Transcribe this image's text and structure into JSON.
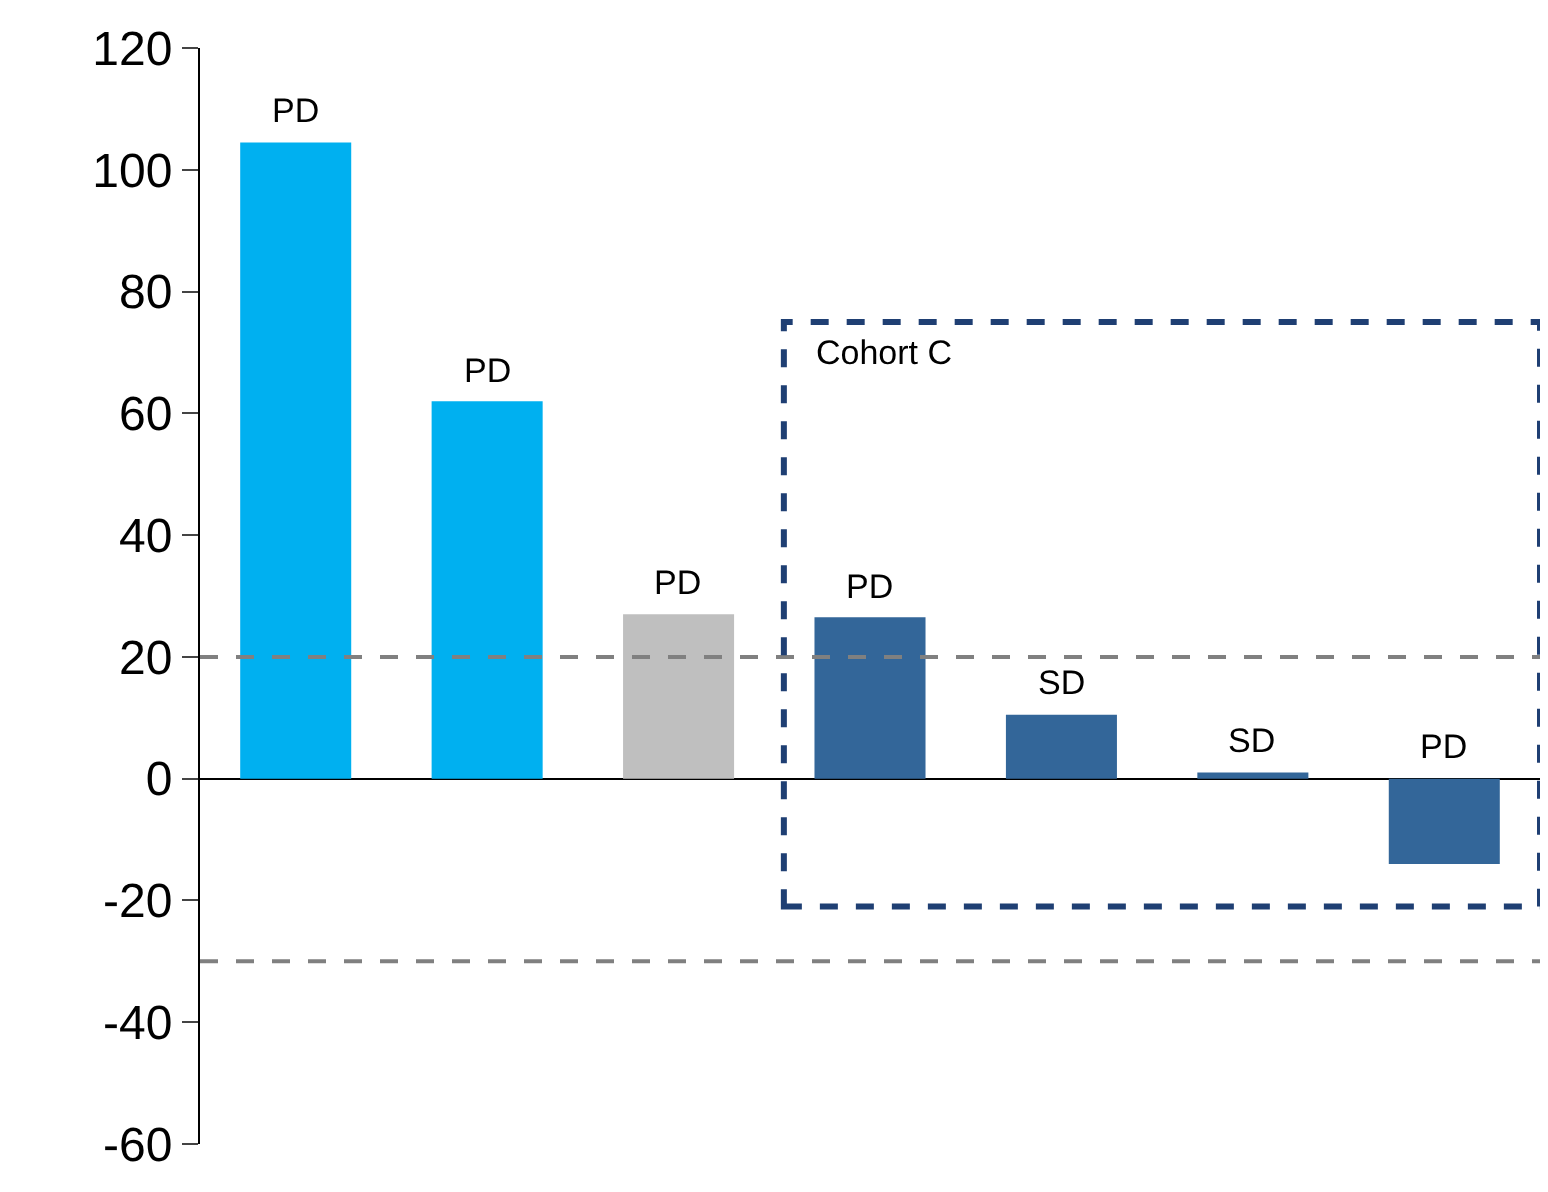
{
  "chart_data": {
    "type": "bar",
    "categories": [
      null,
      null,
      null,
      null,
      null,
      null,
      null
    ],
    "values": [
      104.5,
      62,
      27,
      26.5,
      10.5,
      1,
      -14
    ],
    "colors": [
      "#00b0f0",
      "#00b0f0",
      "#bfbfbf",
      "#336699",
      "#336699",
      "#336699",
      "#336699"
    ],
    "value_labels": [
      "PD",
      "PD",
      "PD",
      "PD",
      "SD",
      "SD",
      "PD"
    ],
    "ylim": [
      -60,
      120
    ],
    "yticks": [
      -60,
      -40,
      -20,
      0,
      20,
      40,
      60,
      80,
      100,
      120
    ],
    "ref_lines": [
      {
        "axis": "y",
        "value": 20,
        "color": "#808080",
        "line_style": "dashed"
      },
      {
        "axis": "y",
        "value": -30,
        "color": "#808080",
        "line_style": "dashed"
      }
    ],
    "annotations": [
      "Cohort C"
    ],
    "tick_labels": "y"
  }
}
